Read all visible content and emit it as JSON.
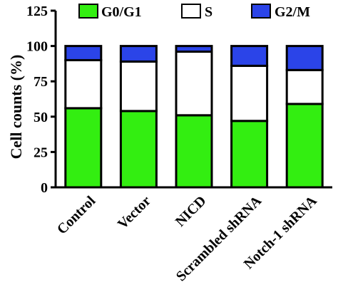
{
  "chart_data": {
    "type": "bar",
    "stacked": true,
    "categories": [
      "Control",
      "Vector",
      "NICD",
      "Scrambled shRNA",
      "Notch-1 shRNA"
    ],
    "series": [
      {
        "name": "G0/G1",
        "color": "#33ee11",
        "values": [
          56,
          54,
          51,
          47,
          59
        ]
      },
      {
        "name": "S",
        "color": "#ffffff",
        "values": [
          34,
          35,
          45,
          39,
          24
        ]
      },
      {
        "name": "G2/M",
        "color": "#2b44e8",
        "values": [
          10,
          11,
          4,
          14,
          17
        ]
      }
    ],
    "title": "",
    "xlabel": "",
    "ylabel": "Cell counts (%)",
    "ylim": [
      0,
      125
    ],
    "yticks": [
      0,
      25,
      50,
      75,
      100,
      125
    ],
    "grid": false,
    "legend_position": "top"
  }
}
